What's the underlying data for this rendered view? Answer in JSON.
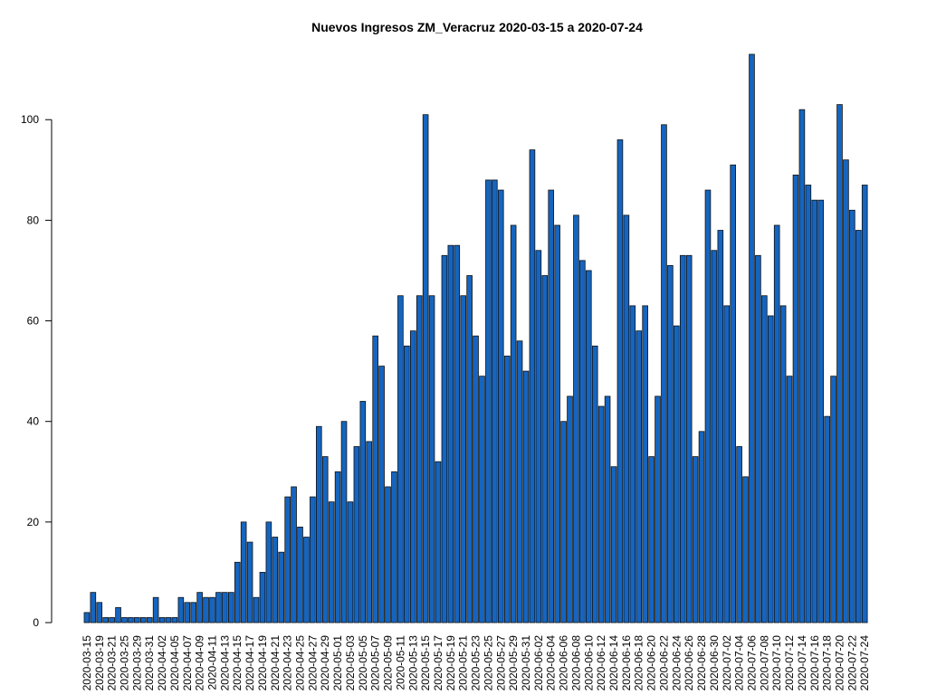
{
  "chart_data": {
    "type": "bar",
    "title": "Nuevos Ingresos ZM_Veracruz 2020-03-15 a 2020-07-24",
    "color": "#1565c0",
    "categories": [
      "2020-03-15",
      null,
      "2020-03-19",
      null,
      "2020-03-21",
      null,
      "2020-03-25",
      null,
      "2020-03-29",
      null,
      "2020-03-31",
      null,
      "2020-04-02",
      null,
      "2020-04-05",
      null,
      "2020-04-07",
      null,
      "2020-04-09",
      null,
      "2020-04-11",
      null,
      "2020-04-13",
      null,
      "2020-04-15",
      null,
      "2020-04-17",
      null,
      "2020-04-19",
      null,
      "2020-04-21",
      null,
      "2020-04-23",
      null,
      "2020-04-25",
      null,
      "2020-04-27",
      null,
      "2020-04-29",
      null,
      "2020-05-01",
      null,
      "2020-05-03",
      null,
      "2020-05-05",
      null,
      "2020-05-07",
      null,
      "2020-05-09",
      null,
      "2020-05-11",
      null,
      "2020-05-13",
      null,
      "2020-05-15",
      null,
      "2020-05-17",
      null,
      "2020-05-19",
      null,
      "2020-05-21",
      null,
      "2020-05-23",
      null,
      "2020-05-25",
      null,
      "2020-05-27",
      null,
      "2020-05-29",
      null,
      "2020-05-31",
      null,
      "2020-06-02",
      null,
      "2020-06-04",
      null,
      "2020-06-06",
      null,
      "2020-06-08",
      null,
      "2020-06-10",
      null,
      "2020-06-12",
      null,
      "2020-06-14",
      null,
      "2020-06-16",
      null,
      "2020-06-18",
      null,
      "2020-06-20",
      null,
      "2020-06-22",
      null,
      "2020-06-24",
      null,
      "2020-06-26",
      null,
      "2020-06-28",
      null,
      "2020-06-30",
      null,
      "2020-07-02",
      null,
      "2020-07-04",
      null,
      "2020-07-06",
      null,
      "2020-07-08",
      null,
      "2020-07-10",
      null,
      "2020-07-12",
      null,
      "2020-07-14",
      null,
      "2020-07-16",
      null,
      "2020-07-18",
      null,
      "2020-07-20",
      null,
      "2020-07-22",
      null,
      "2020-07-24"
    ],
    "values": [
      2,
      6,
      4,
      1,
      1,
      3,
      1,
      1,
      1,
      1,
      1,
      5,
      1,
      1,
      1,
      5,
      4,
      4,
      6,
      5,
      5,
      6,
      6,
      6,
      12,
      20,
      16,
      5,
      10,
      20,
      17,
      14,
      25,
      27,
      19,
      17,
      25,
      39,
      33,
      24,
      30,
      40,
      24,
      35,
      44,
      36,
      57,
      51,
      27,
      30,
      65,
      55,
      58,
      65,
      101,
      65,
      32,
      73,
      75,
      75,
      65,
      69,
      57,
      49,
      88,
      88,
      86,
      53,
      79,
      56,
      50,
      94,
      74,
      69,
      86,
      79,
      40,
      45,
      81,
      72,
      70,
      55,
      43,
      45,
      31,
      96,
      81,
      63,
      58,
      63,
      33,
      45,
      99,
      71,
      59,
      73,
      73,
      33,
      38,
      86,
      74,
      78,
      63,
      91,
      35,
      29,
      113,
      73,
      65,
      61,
      79,
      63,
      49,
      89,
      102,
      87,
      84,
      84,
      41,
      49,
      103,
      92,
      82,
      78,
      87
    ],
    "ylim": [
      0,
      113
    ],
    "yticks": [
      0,
      20,
      40,
      60,
      80,
      100
    ]
  }
}
